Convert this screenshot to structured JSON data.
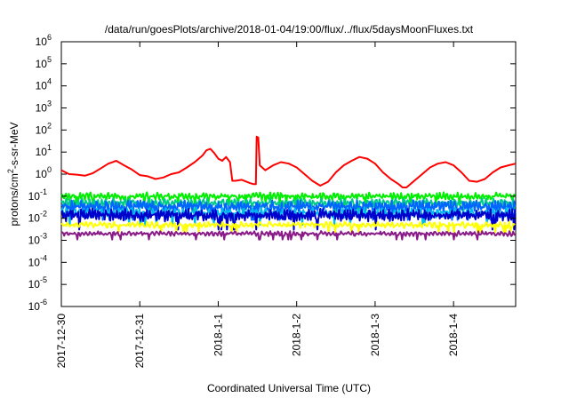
{
  "chart_data": {
    "type": "line",
    "title": "/data/run/goesPlots/archive/2018-01-04/19:00/flux/../flux/5daysMoonFluxes.txt",
    "xlabel": "Coordinated Universal Time (UTC)",
    "ylabel": {
      "base": "protons/cm",
      "sup": "2",
      "rest": "-s-sr-MeV"
    },
    "y_scale": "log",
    "ylim": [
      1e-06,
      1000000.0
    ],
    "xlim": [
      "2017-12-30 00:00",
      "2018-01-04 19:00"
    ],
    "grid": false,
    "legend": "none",
    "x_tick_labels": [
      "2017-12-30",
      "2017-12-31",
      "2018-1-1",
      "2018-1-2",
      "2018-1-3",
      "2018-1-4"
    ],
    "x_tick_days": [
      0,
      1,
      2,
      3,
      4,
      5
    ],
    "y_ticks": [
      {
        "exp": -6,
        "label": "10",
        "sup": "-6"
      },
      {
        "exp": -5,
        "label": "10",
        "sup": "-5"
      },
      {
        "exp": -4,
        "label": "10",
        "sup": "-4"
      },
      {
        "exp": -3,
        "label": "10",
        "sup": "-3"
      },
      {
        "exp": -2,
        "label": "10",
        "sup": "-2"
      },
      {
        "exp": -1,
        "label": "10",
        "sup": "-1"
      },
      {
        "exp": 0,
        "label": "10",
        "sup": "0"
      },
      {
        "exp": 1,
        "label": "10",
        "sup": "1"
      },
      {
        "exp": 2,
        "label": "10",
        "sup": "2"
      },
      {
        "exp": 3,
        "label": "10",
        "sup": "3"
      },
      {
        "exp": 4,
        "label": "10",
        "sup": "4"
      },
      {
        "exp": 5,
        "label": "10",
        "sup": "5"
      },
      {
        "exp": 6,
        "label": "10",
        "sup": "6"
      }
    ],
    "series": [
      {
        "color": "#ff0000",
        "points": [
          [
            0.0,
            1.5
          ],
          [
            0.1,
            1.0
          ],
          [
            0.2,
            0.95
          ],
          [
            0.3,
            0.85
          ],
          [
            0.4,
            1.1
          ],
          [
            0.5,
            1.8
          ],
          [
            0.6,
            3.0
          ],
          [
            0.7,
            4.0
          ],
          [
            0.8,
            2.5
          ],
          [
            0.9,
            1.6
          ],
          [
            1.0,
            0.9
          ],
          [
            1.1,
            0.8
          ],
          [
            1.2,
            0.6
          ],
          [
            1.3,
            0.7
          ],
          [
            1.4,
            1.0
          ],
          [
            1.5,
            1.2
          ],
          [
            1.6,
            2.0
          ],
          [
            1.7,
            3.5
          ],
          [
            1.8,
            7.0
          ],
          [
            1.85,
            12.0
          ],
          [
            1.9,
            14.0
          ],
          [
            1.95,
            9.0
          ],
          [
            2.0,
            5.0
          ],
          [
            2.05,
            4.0
          ],
          [
            2.1,
            6.0
          ],
          [
            2.15,
            3.5
          ],
          [
            2.18,
            0.5
          ],
          [
            2.22,
            0.5
          ],
          [
            2.3,
            0.55
          ],
          [
            2.4,
            0.4
          ],
          [
            2.45,
            0.35
          ],
          [
            2.48,
            0.35
          ],
          [
            2.49,
            50.0
          ],
          [
            2.51,
            45.0
          ],
          [
            2.53,
            2.5
          ],
          [
            2.6,
            1.5
          ],
          [
            2.7,
            2.5
          ],
          [
            2.8,
            3.5
          ],
          [
            2.9,
            3.0
          ],
          [
            3.0,
            2.0
          ],
          [
            3.1,
            1.0
          ],
          [
            3.2,
            0.5
          ],
          [
            3.3,
            0.3
          ],
          [
            3.4,
            0.45
          ],
          [
            3.5,
            1.2
          ],
          [
            3.6,
            2.5
          ],
          [
            3.7,
            4.0
          ],
          [
            3.8,
            6.0
          ],
          [
            3.9,
            5.0
          ],
          [
            4.0,
            3.0
          ],
          [
            4.1,
            1.2
          ],
          [
            4.2,
            0.6
          ],
          [
            4.3,
            0.35
          ],
          [
            4.35,
            0.25
          ],
          [
            4.4,
            0.25
          ],
          [
            4.5,
            0.5
          ],
          [
            4.6,
            1.0
          ],
          [
            4.7,
            2.0
          ],
          [
            4.8,
            3.0
          ],
          [
            4.9,
            3.5
          ],
          [
            5.0,
            2.5
          ],
          [
            5.1,
            1.2
          ],
          [
            5.2,
            0.5
          ],
          [
            5.3,
            0.45
          ],
          [
            5.4,
            0.6
          ],
          [
            5.5,
            1.2
          ],
          [
            5.6,
            2.0
          ],
          [
            5.7,
            2.5
          ],
          [
            5.79,
            3.0
          ]
        ]
      },
      {
        "color": "#00ee00",
        "base": 0.1,
        "amp": 0.18,
        "period": 0.045,
        "seed": 3
      },
      {
        "color": "#00cc88",
        "base": 0.05,
        "amp": 0.22,
        "period": 0.05,
        "seed": 11
      },
      {
        "color": "#0066ff",
        "base": 0.035,
        "amp": 0.28,
        "period": 0.04,
        "seed": 7
      },
      {
        "color": "#00bbee",
        "base": 0.018,
        "amp": 0.25,
        "period": 0.055,
        "seed": 19
      },
      {
        "color": "#0000cc",
        "base": 0.014,
        "amp": 0.3,
        "period": 0.035,
        "seed": 23
      },
      {
        "color": "#ffff00",
        "base": 0.005,
        "amp": 0.15,
        "period": 0.06,
        "seed": 31
      },
      {
        "color": "#8b1a89",
        "base": 0.002,
        "amp": 0.12,
        "period": 0.05,
        "seed": 41
      }
    ]
  }
}
